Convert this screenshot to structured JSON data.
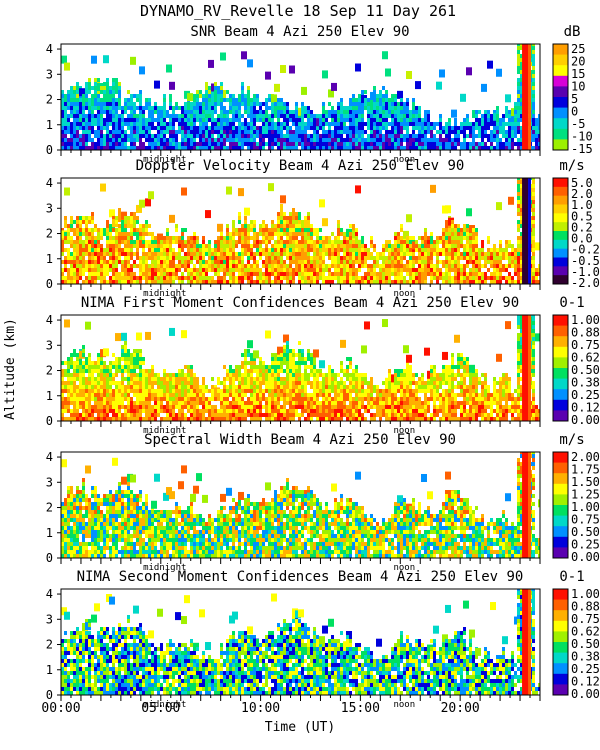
{
  "title": "DYNAMO_RV_Revelle  18 Sep 11 Day 261",
  "ylabel": "Altitude (km)",
  "xlabel": "Time (UT)",
  "time_ticks": [
    "00:00",
    "05:00",
    "10:00",
    "15:00",
    "20:00"
  ],
  "markers": [
    "midnight",
    "noon"
  ],
  "chart_data": [
    {
      "type": "heatmap",
      "title": "SNR Beam 4 Azi 250 Elev 90",
      "unit": "dB",
      "xlim_hours": [
        0,
        24
      ],
      "ylim_km": [
        0,
        4.2
      ],
      "yticks": [
        "0",
        "1",
        "2",
        "3",
        "4"
      ],
      "colorbar_labels": [
        "25",
        "20",
        "15",
        "10",
        "5",
        "0",
        "-5",
        "-10",
        "-15"
      ],
      "colorbar_colors": [
        "#ff9e00",
        "#ffcf00",
        "#ffff00",
        "#d800d8",
        "#5a00b0",
        "#0000dc",
        "#0090ff",
        "#00d8c8",
        "#00e080",
        "#9cf000"
      ]
    },
    {
      "type": "heatmap",
      "title": "Doppler Velocity Beam 4 Azi 250 Elev 90",
      "unit": "m/s",
      "xlim_hours": [
        0,
        24
      ],
      "ylim_km": [
        0,
        4.2
      ],
      "yticks": [
        "0",
        "1",
        "2",
        "3",
        "4"
      ],
      "colorbar_labels": [
        "5.0",
        "2.0",
        "1.0",
        "0.5",
        "0.2",
        "0.0",
        "-0.2",
        "-0.5",
        "-1.0",
        "-2.0"
      ],
      "colorbar_colors": [
        "#ff1000",
        "#ff6000",
        "#ff9e00",
        "#ffd000",
        "#ffff00",
        "#c0f000",
        "#00e060",
        "#00d8c8",
        "#0090ff",
        "#0000dc",
        "#5a00b0",
        "#300030"
      ]
    },
    {
      "type": "heatmap",
      "title": "NIMA First Moment Confidences Beam 4 Azi 250 Elev 90",
      "unit": "0-1",
      "xlim_hours": [
        0,
        24
      ],
      "ylim_km": [
        0,
        4.2
      ],
      "yticks": [
        "0",
        "1",
        "2",
        "3",
        "4"
      ],
      "colorbar_labels": [
        "1.00",
        "0.88",
        "0.75",
        "0.62",
        "0.50",
        "0.38",
        "0.25",
        "0.12",
        "0.00"
      ],
      "colorbar_colors": [
        "#ff1000",
        "#ff6000",
        "#ffb000",
        "#ffff00",
        "#a0f000",
        "#00e060",
        "#00d8c8",
        "#0090ff",
        "#0000dc",
        "#5a00b0"
      ]
    },
    {
      "type": "heatmap",
      "title": "Spectral Width Beam 4 Azi 250 Elev 90",
      "unit": "m/s",
      "xlim_hours": [
        0,
        24
      ],
      "ylim_km": [
        0,
        4.2
      ],
      "yticks": [
        "0",
        "1",
        "2",
        "3",
        "4"
      ],
      "colorbar_labels": [
        "2.00",
        "1.75",
        "1.50",
        "1.25",
        "1.00",
        "0.75",
        "0.50",
        "0.25",
        "0.00"
      ],
      "colorbar_colors": [
        "#ff1000",
        "#ff6000",
        "#ffb000",
        "#ffff00",
        "#a0f000",
        "#00e060",
        "#00d8c8",
        "#0090ff",
        "#0000dc",
        "#5a00b0"
      ]
    },
    {
      "type": "heatmap",
      "title": "NIMA Second Moment Confidences Beam 4 Azi 250 Elev 90",
      "unit": "0-1",
      "xlim_hours": [
        0,
        24
      ],
      "ylim_km": [
        0,
        4.2
      ],
      "yticks": [
        "0",
        "1",
        "2",
        "3",
        "4"
      ],
      "colorbar_labels": [
        "1.00",
        "0.88",
        "0.75",
        "0.62",
        "0.50",
        "0.38",
        "0.25",
        "0.12",
        "0.00"
      ],
      "colorbar_colors": [
        "#ff1000",
        "#ff6000",
        "#ffb000",
        "#ffff00",
        "#a0f000",
        "#00e060",
        "#00d8c8",
        "#0090ff",
        "#0000dc",
        "#5a00b0"
      ]
    }
  ]
}
